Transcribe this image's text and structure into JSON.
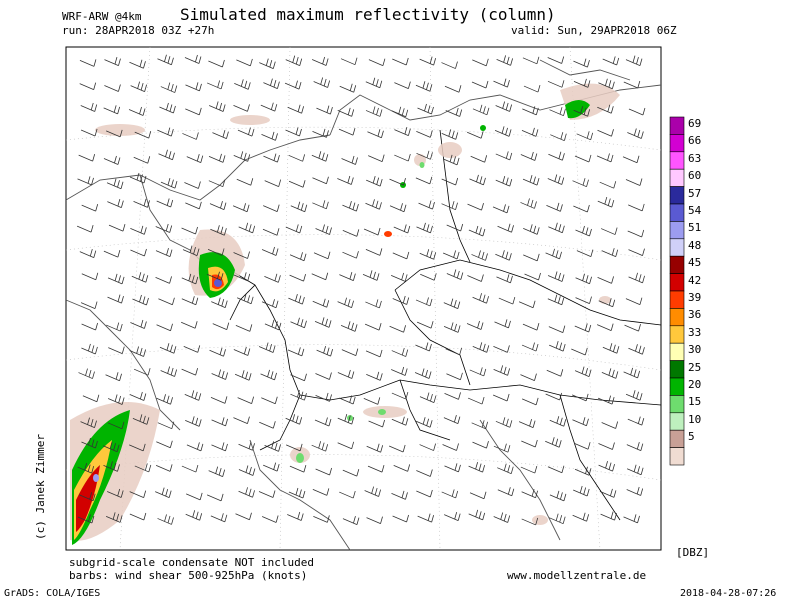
{
  "header": {
    "model": "WRF-ARW @4km",
    "title": "Simulated maximum reflectivity (column)",
    "run": "run: 28APR2018 03Z +27h",
    "valid": "valid: Sun, 29APR2018 06Z"
  },
  "footer": {
    "note_line1": "subgrid-scale condensate NOT included",
    "note_line2": "barbs: wind shear 500-925hPa (knots)",
    "website": "www.modellzentrale.de",
    "grads": "GrADS: COLA/IGES",
    "timestamp": "2018-04-28-07:26"
  },
  "copyright": "(c) Janek Zimmer",
  "legend": {
    "unit": "[DBZ]",
    "items": [
      {
        "value": "69",
        "color": "#aa00aa"
      },
      {
        "value": "66",
        "color": "#d200d2"
      },
      {
        "value": "63",
        "color": "#ff55ff"
      },
      {
        "value": "60",
        "color": "#ffc8ff"
      },
      {
        "value": "57",
        "color": "#2a2a9c"
      },
      {
        "value": "54",
        "color": "#5a5ad2"
      },
      {
        "value": "51",
        "color": "#9c9cf0"
      },
      {
        "value": "48",
        "color": "#d0d0f8"
      },
      {
        "value": "45",
        "color": "#960000"
      },
      {
        "value": "42",
        "color": "#d20000"
      },
      {
        "value": "39",
        "color": "#ff3c00"
      },
      {
        "value": "36",
        "color": "#ff8c00"
      },
      {
        "value": "33",
        "color": "#ffc83c"
      },
      {
        "value": "30",
        "color": "#ffffb4"
      },
      {
        "value": "25",
        "color": "#007800"
      },
      {
        "value": "20",
        "color": "#00b400"
      },
      {
        "value": "15",
        "color": "#6edc6e"
      },
      {
        "value": "10",
        "color": "#bef0be"
      },
      {
        "value": "5",
        "color": "#c8a096"
      },
      {
        "value": "",
        "color": "#f0dcd2"
      }
    ]
  },
  "colors": {
    "border": "#000000",
    "coastline": "#555555",
    "grid": "#bbbbbb",
    "light_echo": "#e8cdc2",
    "barb": "#333333"
  }
}
